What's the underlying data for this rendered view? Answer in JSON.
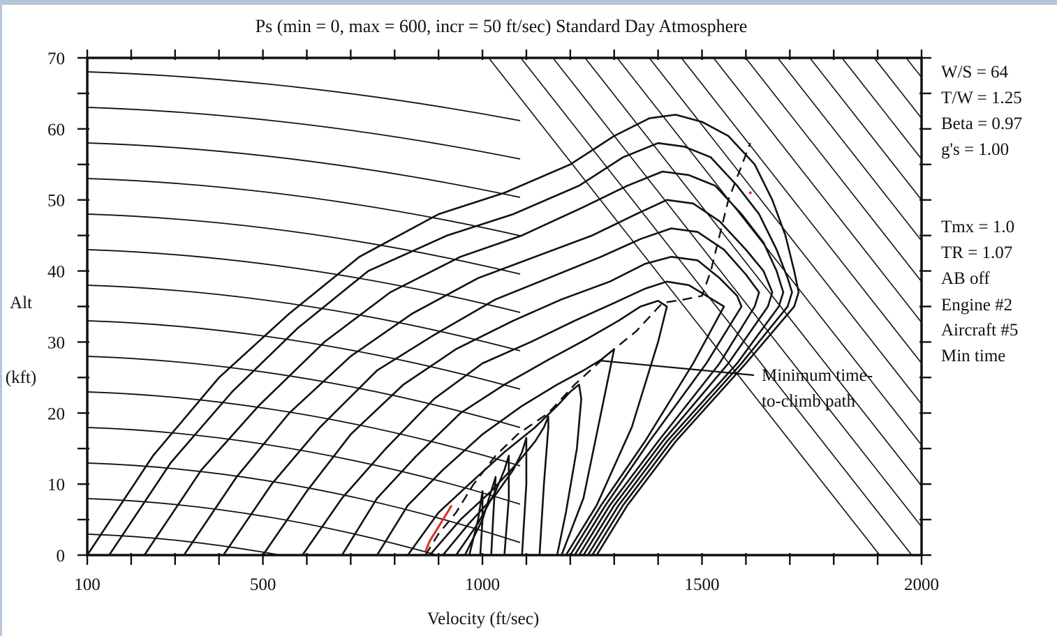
{
  "chart_data": {
    "type": "line",
    "title": "Ps (min = 0, max = 600, incr = 50 ft/sec) Standard Day Atmosphere",
    "xlabel": "Velocity (ft/sec)",
    "ylabel": "Alt",
    "ylabel_units": "(kft)",
    "xlim": [
      100,
      2000
    ],
    "ylim": [
      0,
      70
    ],
    "x_tick_labels": [
      "100",
      "500",
      "1000",
      "1500",
      "2000"
    ],
    "x_tick_values": [
      100,
      500,
      1000,
      1500,
      2000
    ],
    "y_tick_labels": [
      "0",
      "10",
      "20",
      "30",
      "40",
      "50",
      "60",
      "70"
    ],
    "y_tick_values": [
      0,
      10,
      20,
      30,
      40,
      50,
      60,
      70
    ],
    "grid": false,
    "notes": [
      "W/S = 64",
      "T/W = 1.25",
      "Beta = 0.97",
      "g's = 1.00",
      "Tmx = 1.0",
      "TR = 1.07",
      "AB off",
      "Engine #2",
      "Aircraft #5",
      "Min time"
    ],
    "annotation": [
      "Minimum time-",
      "to-climb path"
    ],
    "annotation_target": {
      "x": 1270,
      "y": 27
    },
    "ps_contours": [
      {
        "x": [
          100,
          250,
          400,
          560,
          720,
          900,
          1050,
          1200,
          1300,
          1380,
          1440,
          1500,
          1560,
          1620,
          1660,
          1690,
          1710,
          1720,
          1710,
          1600,
          1440,
          1330,
          1260
        ],
        "y": [
          0,
          14,
          25,
          34,
          42,
          48,
          51,
          55,
          59,
          61.5,
          62,
          61,
          59,
          55,
          50,
          45,
          40,
          37,
          35,
          27,
          16,
          7,
          0
        ]
      },
      {
        "x": [
          150,
          290,
          430,
          580,
          740,
          920,
          1070,
          1220,
          1320,
          1400,
          1460,
          1520,
          1580,
          1630,
          1670,
          1695,
          1705,
          1695,
          1590,
          1430,
          1320,
          1250
        ],
        "y": [
          0,
          13,
          23,
          32,
          40,
          45,
          48,
          52,
          56,
          58,
          57.5,
          56,
          52,
          48,
          43,
          39,
          37,
          35,
          27,
          16,
          7,
          0
        ]
      },
      {
        "x": [
          230,
          360,
          490,
          640,
          790,
          950,
          1090,
          1230,
          1330,
          1410,
          1470,
          1530,
          1590,
          1640,
          1670,
          1685,
          1675,
          1580,
          1420,
          1310,
          1240
        ],
        "y": [
          0,
          12,
          21,
          30,
          37,
          42,
          45,
          49,
          52,
          54,
          53.5,
          52,
          48,
          44,
          40,
          37,
          35,
          27,
          16,
          7,
          0
        ]
      },
      {
        "x": [
          320,
          440,
          560,
          700,
          840,
          990,
          1120,
          1250,
          1350,
          1420,
          1480,
          1540,
          1600,
          1640,
          1660,
          1650,
          1560,
          1410,
          1300,
          1230
        ],
        "y": [
          0,
          11,
          20,
          28,
          34,
          39,
          42,
          45,
          48,
          50,
          49.5,
          47,
          43,
          40,
          37,
          35,
          27,
          16,
          7,
          0
        ]
      },
      {
        "x": [
          410,
          520,
          630,
          760,
          890,
          1030,
          1150,
          1270,
          1360,
          1430,
          1490,
          1550,
          1600,
          1630,
          1620,
          1540,
          1400,
          1290,
          1220
        ],
        "y": [
          0,
          10,
          18,
          26,
          31,
          36,
          39,
          42,
          44.5,
          46,
          45.5,
          43,
          39.5,
          37,
          35,
          27,
          16,
          7,
          0
        ]
      },
      {
        "x": [
          500,
          600,
          700,
          820,
          940,
          1070,
          1180,
          1290,
          1370,
          1430,
          1490,
          1540,
          1580,
          1590,
          1510,
          1380,
          1280,
          1210
        ],
        "y": [
          0,
          9,
          17,
          24,
          29,
          33,
          36,
          38.5,
          41,
          42,
          41.5,
          39,
          36.5,
          35,
          27,
          16,
          7,
          0
        ]
      },
      {
        "x": [
          590,
          680,
          780,
          890,
          1000,
          1110,
          1210,
          1300,
          1370,
          1420,
          1470,
          1510,
          1550,
          1480,
          1370,
          1270,
          1200
        ],
        "y": [
          0,
          8,
          15,
          22,
          27,
          30,
          33,
          35.5,
          37.5,
          38.5,
          38,
          36.5,
          35,
          27,
          16,
          7,
          0
        ]
      },
      {
        "x": [
          680,
          760,
          850,
          950,
          1050,
          1150,
          1240,
          1310,
          1360,
          1400,
          1420,
          1400,
          1340,
          1260,
          1190
        ],
        "y": [
          0,
          8,
          14,
          20,
          24,
          27.5,
          30.5,
          33,
          35,
          35.8,
          35,
          30,
          18,
          7,
          0
        ]
      },
      {
        "x": [
          760,
          830,
          910,
          1000,
          1090,
          1170,
          1230,
          1270,
          1290,
          1300,
          1270,
          1230,
          1180
        ],
        "y": [
          0,
          7,
          12,
          17,
          21,
          24,
          26,
          27.5,
          28.5,
          29,
          20,
          8,
          0
        ]
      },
      {
        "x": [
          830,
          900,
          970,
          1050,
          1120,
          1170,
          1200,
          1220,
          1225,
          1215,
          1190,
          1170
        ],
        "y": [
          0,
          6,
          10,
          14.5,
          18,
          21,
          23,
          24,
          22,
          15,
          6,
          0
        ]
      },
      {
        "x": [
          880,
          950,
          1020,
          1080,
          1120,
          1140,
          1150,
          1150,
          1140,
          1130
        ],
        "y": [
          0,
          5,
          9,
          13,
          16,
          18,
          19.5,
          18,
          10,
          0
        ]
      },
      {
        "x": [
          910,
          970,
          1030,
          1070,
          1090,
          1100,
          1100,
          1090
        ],
        "y": [
          0,
          4.5,
          8.5,
          12,
          14.5,
          16.5,
          10,
          0
        ]
      },
      {
        "x": [
          940,
          990,
          1030,
          1050,
          1060,
          1060,
          1050
        ],
        "y": [
          0,
          4.5,
          9,
          12,
          14,
          8,
          0
        ]
      },
      {
        "x": [
          960,
          1000,
          1020,
          1030,
          1025,
          1020
        ],
        "y": [
          0,
          5,
          9,
          11,
          6,
          0
        ]
      },
      {
        "x": [
          970,
          990,
          1000,
          1000,
          995
        ],
        "y": [
          0,
          5,
          9,
          5,
          0
        ]
      }
    ],
    "min_time_path": {
      "x": [
        870,
        900,
        940,
        980,
        1030,
        1080,
        1150,
        1210,
        1290,
        1350,
        1410,
        1460,
        1500,
        1520,
        1560,
        1610
      ],
      "y": [
        0,
        3,
        6,
        10,
        14,
        17,
        20,
        24,
        28.5,
        31.5,
        35.5,
        36,
        36.5,
        40,
        50,
        58
      ]
    },
    "red_segment": {
      "x": [
        870,
        880,
        900,
        930
      ],
      "y": [
        0.5,
        2,
        4,
        7
      ]
    },
    "red_dot": {
      "x": 1610,
      "y": 51
    }
  }
}
